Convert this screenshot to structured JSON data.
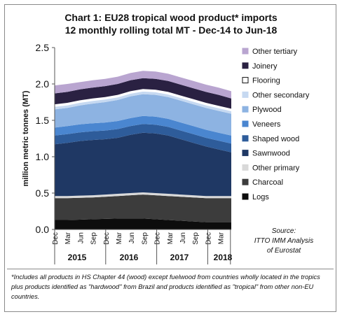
{
  "chart_data": {
    "type": "area",
    "stacked": true,
    "title_line1": "Chart 1: EU28 tropical wood product* imports",
    "title_line2": "12 monthly rolling total MT - Dec-14 to Jun-18",
    "ylabel": "million metric tonnes (MT)",
    "ylim": [
      0,
      2.5
    ],
    "yticks": [
      "0.0",
      "0.5",
      "1.0",
      "1.5",
      "2.0",
      "2.5"
    ],
    "xtick_labels": [
      "Dec",
      "Mar",
      "Jun",
      "Sep",
      "Dec",
      "Mar",
      "Jun",
      "Sep",
      "Dec",
      "Mar",
      "Jun",
      "Sep",
      "Dec",
      "Mar"
    ],
    "year_labels": [
      "2015",
      "2016",
      "2017",
      "2018"
    ],
    "legend_position": "right",
    "x": [
      "Dec-14",
      "Mar-15",
      "Jun-15",
      "Sep-15",
      "Dec-15",
      "Mar-16",
      "Jun-16",
      "Sep-16",
      "Dec-16",
      "Mar-17",
      "Jun-17",
      "Sep-17",
      "Dec-17",
      "Mar-18",
      "Jun-18"
    ],
    "series": [
      {
        "name": "Logs",
        "color": "#0d0d0d",
        "values": [
          0.13,
          0.13,
          0.135,
          0.14,
          0.145,
          0.15,
          0.15,
          0.15,
          0.14,
          0.13,
          0.12,
          0.11,
          0.1,
          0.1,
          0.1
        ]
      },
      {
        "name": "Charcoal",
        "color": "#3c3c3c",
        "values": [
          0.3,
          0.3,
          0.3,
          0.3,
          0.305,
          0.31,
          0.32,
          0.33,
          0.33,
          0.33,
          0.33,
          0.33,
          0.33,
          0.33,
          0.33
        ]
      },
      {
        "name": "Other primary",
        "color": "#d9d9d9",
        "values": [
          0.03,
          0.03,
          0.03,
          0.03,
          0.03,
          0.03,
          0.03,
          0.03,
          0.03,
          0.03,
          0.03,
          0.03,
          0.03,
          0.03,
          0.03
        ]
      },
      {
        "name": "Sawnwood",
        "color": "#1f3864",
        "values": [
          0.71,
          0.73,
          0.75,
          0.76,
          0.76,
          0.77,
          0.8,
          0.82,
          0.82,
          0.8,
          0.76,
          0.72,
          0.68,
          0.64,
          0.6
        ]
      },
      {
        "name": "Shaped wood",
        "color": "#2e5c9a",
        "values": [
          0.12,
          0.12,
          0.12,
          0.12,
          0.12,
          0.12,
          0.12,
          0.12,
          0.12,
          0.12,
          0.12,
          0.12,
          0.12,
          0.12,
          0.12
        ]
      },
      {
        "name": "Veneers",
        "color": "#4a86d0",
        "values": [
          0.11,
          0.11,
          0.11,
          0.11,
          0.11,
          0.11,
          0.11,
          0.11,
          0.11,
          0.11,
          0.11,
          0.11,
          0.11,
          0.11,
          0.11
        ]
      },
      {
        "name": "Plywood",
        "color": "#8db3e2",
        "values": [
          0.25,
          0.25,
          0.26,
          0.27,
          0.28,
          0.29,
          0.3,
          0.3,
          0.3,
          0.3,
          0.3,
          0.3,
          0.3,
          0.3,
          0.3
        ]
      },
      {
        "name": "Other secondary",
        "color": "#c6d9f1",
        "values": [
          0.04,
          0.04,
          0.04,
          0.04,
          0.04,
          0.04,
          0.04,
          0.04,
          0.04,
          0.04,
          0.04,
          0.04,
          0.04,
          0.04,
          0.04
        ]
      },
      {
        "name": "Flooring",
        "color": "#ffffff",
        "values": [
          0.03,
          0.03,
          0.03,
          0.03,
          0.03,
          0.03,
          0.03,
          0.03,
          0.03,
          0.03,
          0.03,
          0.03,
          0.03,
          0.03,
          0.03
        ]
      },
      {
        "name": "Joinery",
        "color": "#2a2142",
        "values": [
          0.15,
          0.15,
          0.15,
          0.15,
          0.15,
          0.15,
          0.15,
          0.15,
          0.15,
          0.15,
          0.15,
          0.15,
          0.15,
          0.15,
          0.14
        ]
      },
      {
        "name": "Other tertiary",
        "color": "#b9a5d0",
        "values": [
          0.11,
          0.11,
          0.1,
          0.1,
          0.1,
          0.1,
          0.1,
          0.1,
          0.1,
          0.1,
          0.1,
          0.1,
          0.1,
          0.1,
          0.1
        ]
      }
    ],
    "legend_order": [
      "Other tertiary",
      "Joinery",
      "Flooring",
      "Other secondary",
      "Plywood",
      "Veneers",
      "Shaped wood",
      "Sawnwood",
      "Other primary",
      "Charcoal",
      "Logs"
    ]
  },
  "source_label": "Source:",
  "source_line1": "ITTO IMM Analysis",
  "source_line2": "of Eurostat",
  "footnote": "*Includes all products in HS Chapter 44 (wood) except fuelwood from countries wholly located in the tropics plus products identified as \"hardwood\" from Brazil and products identified as \"tropical\" from other non-EU countries."
}
